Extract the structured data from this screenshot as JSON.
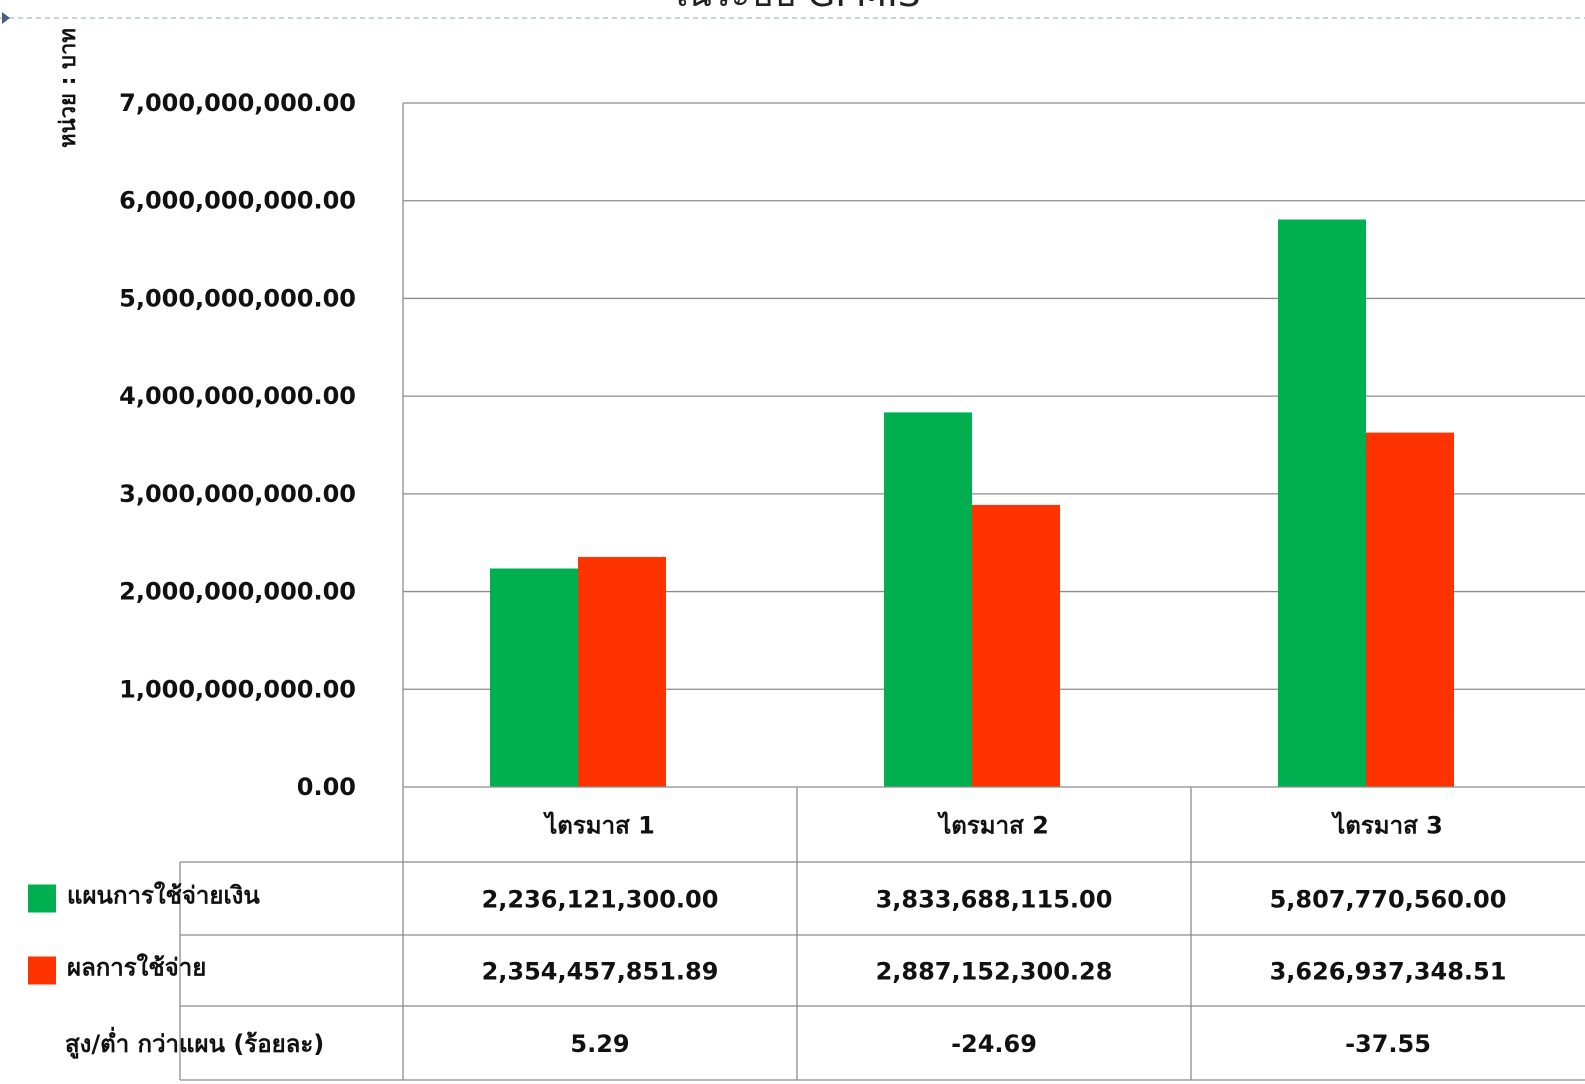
{
  "chart_data": {
    "type": "bar",
    "title": "ในระบบ GFMIS",
    "ylabel": "หน่วย : บาท",
    "ylim": [
      0,
      7000000000
    ],
    "ytick_labels": [
      "0.00",
      "1,000,000,000.00",
      "2,000,000,000.00",
      "3,000,000,000.00",
      "4,000,000,000.00",
      "5,000,000,000.00",
      "6,000,000,000.00",
      "7,000,000,000.00"
    ],
    "grid": true,
    "legend": "data-table",
    "categories": [
      "ไตรมาส 1",
      "ไตรมาส 2",
      "ไตรมาส 3"
    ],
    "series": [
      {
        "name": "แผนการใช้จ่ายเงิน",
        "color": "#00b050",
        "values": [
          2236121300.0,
          3833688115.0,
          5807770560.0
        ],
        "labels": [
          "2,236,121,300.00",
          "3,833,688,115.00",
          "5,807,770,560.00"
        ]
      },
      {
        "name": "ผลการใช้จ่าย",
        "color": "#ff3300",
        "values": [
          2354457851.89,
          2887152300.28,
          3626937348.51
        ],
        "labels": [
          "2,354,457,851.89",
          "2,887,152,300.28",
          "3,626,937,348.51"
        ]
      }
    ],
    "extra_row": {
      "name": "สูง/ต่ำ กว่าแผน (ร้อยละ)",
      "values": [
        "5.29",
        "-24.69",
        "-37.55"
      ]
    }
  }
}
